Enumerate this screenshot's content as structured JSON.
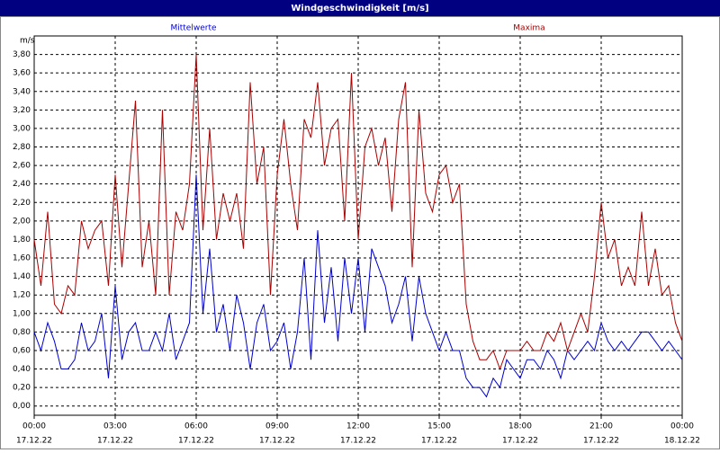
{
  "chart_data": {
    "type": "line",
    "title": "Windgeschwindigkeit [m/s]",
    "y_label": "m/s",
    "xlim": [
      0,
      24
    ],
    "ylim": [
      -0.1,
      4.0
    ],
    "grid": true,
    "x": [
      0,
      0.25,
      0.5,
      0.75,
      1,
      1.25,
      1.5,
      1.75,
      2,
      2.25,
      2.5,
      2.75,
      3,
      3.25,
      3.5,
      3.75,
      4,
      4.25,
      4.5,
      4.75,
      5,
      5.25,
      5.5,
      5.75,
      6,
      6.25,
      6.5,
      6.75,
      7,
      7.25,
      7.5,
      7.75,
      8,
      8.25,
      8.5,
      8.75,
      9,
      9.25,
      9.5,
      9.75,
      10,
      10.25,
      10.5,
      10.75,
      11,
      11.25,
      11.5,
      11.75,
      12,
      12.25,
      12.5,
      12.75,
      13,
      13.25,
      13.5,
      13.75,
      14,
      14.25,
      14.5,
      14.75,
      15,
      15.25,
      15.5,
      15.75,
      16,
      16.25,
      16.5,
      16.75,
      17,
      17.25,
      17.5,
      17.75,
      18,
      18.25,
      18.5,
      18.75,
      19,
      19.25,
      19.5,
      19.75,
      20,
      20.25,
      20.5,
      20.75,
      21,
      21.25,
      21.5,
      21.75,
      22,
      22.25,
      22.5,
      22.75,
      23,
      23.25,
      23.5,
      23.75,
      24
    ],
    "xticks": [
      {
        "value": 0,
        "label": [
          "00:00",
          "17.12.22"
        ]
      },
      {
        "value": 3,
        "label": [
          "03:00",
          "17.12.22"
        ]
      },
      {
        "value": 6,
        "label": [
          "06:00",
          "17.12.22"
        ]
      },
      {
        "value": 9,
        "label": [
          "09:00",
          "17.12.22"
        ]
      },
      {
        "value": 12,
        "label": [
          "12:00",
          "17.12.22"
        ]
      },
      {
        "value": 15,
        "label": [
          "15:00",
          "17.12.22"
        ]
      },
      {
        "value": 18,
        "label": [
          "18:00",
          "17.12.22"
        ]
      },
      {
        "value": 21,
        "label": [
          "21:00",
          "17.12.22"
        ]
      },
      {
        "value": 24,
        "label": [
          "00:00",
          "18.12.22"
        ]
      }
    ],
    "yticks": [
      {
        "value": 0,
        "label": "0,00"
      },
      {
        "value": 0.2,
        "label": "0,20"
      },
      {
        "value": 0.4,
        "label": "0,40"
      },
      {
        "value": 0.6,
        "label": "0,60"
      },
      {
        "value": 0.8,
        "label": "0,80"
      },
      {
        "value": 1.0,
        "label": "1,00"
      },
      {
        "value": 1.2,
        "label": "1,20"
      },
      {
        "value": 1.4,
        "label": "1,40"
      },
      {
        "value": 1.6,
        "label": "1,60"
      },
      {
        "value": 1.8,
        "label": "1,80"
      },
      {
        "value": 2.0,
        "label": "2,00"
      },
      {
        "value": 2.2,
        "label": "2,20"
      },
      {
        "value": 2.4,
        "label": "2,40"
      },
      {
        "value": 2.6,
        "label": "2,60"
      },
      {
        "value": 2.8,
        "label": "2,80"
      },
      {
        "value": 3.0,
        "label": "3,00"
      },
      {
        "value": 3.2,
        "label": "3,20"
      },
      {
        "value": 3.4,
        "label": "3,40"
      },
      {
        "value": 3.6,
        "label": "3,60"
      },
      {
        "value": 3.8,
        "label": "3,80"
      }
    ],
    "series": [
      {
        "name": "Mittelwerte",
        "color": "#0000cc",
        "values": [
          0.8,
          0.6,
          0.9,
          0.7,
          0.4,
          0.4,
          0.5,
          0.9,
          0.6,
          0.7,
          1.0,
          0.3,
          1.3,
          0.5,
          0.8,
          0.9,
          0.6,
          0.6,
          0.8,
          0.6,
          1.0,
          0.5,
          0.7,
          0.9,
          2.5,
          1.0,
          1.7,
          0.8,
          1.1,
          0.6,
          1.2,
          0.9,
          0.4,
          0.9,
          1.1,
          0.6,
          0.7,
          0.9,
          0.4,
          0.8,
          1.6,
          0.5,
          1.9,
          0.9,
          1.5,
          0.7,
          1.6,
          1.0,
          1.6,
          0.8,
          1.7,
          1.5,
          1.3,
          0.9,
          1.1,
          1.4,
          0.7,
          1.4,
          1.0,
          0.8,
          0.6,
          0.8,
          0.6,
          0.6,
          0.3,
          0.2,
          0.2,
          0.1,
          0.3,
          0.2,
          0.5,
          0.4,
          0.3,
          0.5,
          0.5,
          0.4,
          0.6,
          0.5,
          0.3,
          0.6,
          0.5,
          0.6,
          0.7,
          0.6,
          0.9,
          0.7,
          0.6,
          0.7,
          0.6,
          0.7,
          0.8,
          0.8,
          0.7,
          0.6,
          0.7,
          0.6,
          0.5
        ]
      },
      {
        "name": "Maxima",
        "color": "#aa0000",
        "values": [
          1.8,
          1.3,
          2.1,
          1.1,
          1.0,
          1.3,
          1.2,
          2.0,
          1.7,
          1.9,
          2.0,
          1.3,
          2.5,
          1.5,
          2.4,
          3.3,
          1.5,
          2.0,
          1.2,
          3.2,
          1.2,
          2.1,
          1.9,
          2.4,
          3.8,
          1.9,
          3.0,
          1.8,
          2.3,
          2.0,
          2.3,
          1.7,
          3.5,
          2.4,
          2.8,
          1.2,
          2.5,
          3.1,
          2.4,
          1.9,
          3.1,
          2.9,
          3.5,
          2.6,
          3.0,
          3.1,
          2.0,
          3.6,
          1.8,
          2.8,
          3.0,
          2.6,
          2.9,
          2.1,
          3.1,
          3.5,
          1.5,
          3.2,
          2.3,
          2.1,
          2.5,
          2.6,
          2.2,
          2.4,
          1.1,
          0.7,
          0.5,
          0.5,
          0.6,
          0.4,
          0.6,
          0.6,
          0.6,
          0.7,
          0.6,
          0.6,
          0.8,
          0.7,
          0.9,
          0.6,
          0.8,
          1.0,
          0.8,
          1.4,
          2.2,
          1.6,
          1.8,
          1.3,
          1.5,
          1.3,
          2.1,
          1.3,
          1.7,
          1.2,
          1.3,
          0.9,
          0.7
        ]
      }
    ]
  }
}
